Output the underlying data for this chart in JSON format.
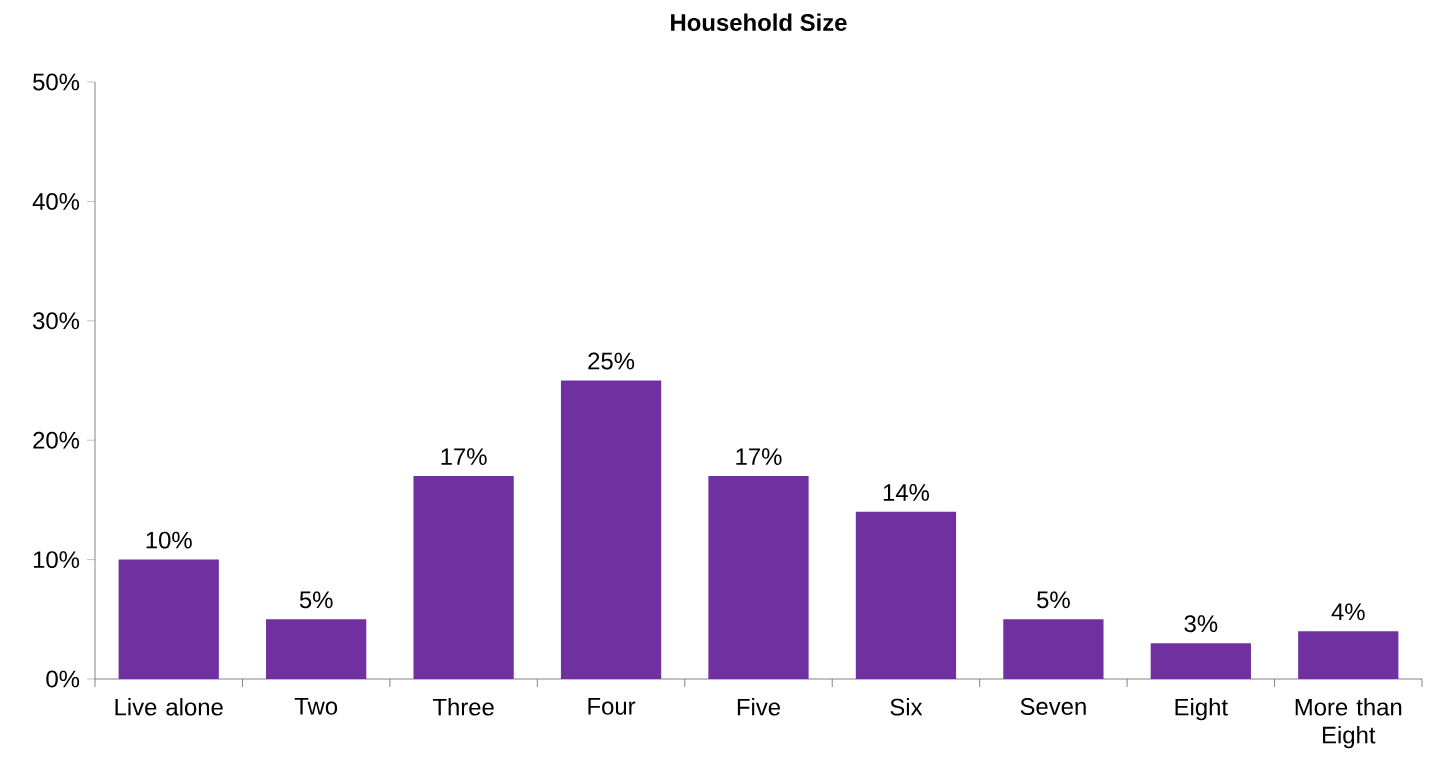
{
  "chart_data": {
    "type": "bar",
    "title": "Household Size",
    "categories": [
      "Live alone",
      "Two",
      "Three",
      "Four",
      "Five",
      "Six",
      "Seven",
      "Eight",
      "More than Eight"
    ],
    "values": [
      10,
      5,
      17,
      25,
      17,
      14,
      5,
      3,
      4
    ],
    "value_labels": [
      "10%",
      "5%",
      "17%",
      "25%",
      "17%",
      "14%",
      "5%",
      "3%",
      "4%"
    ],
    "color": "#7030a0",
    "ylim": [
      0,
      50
    ],
    "yticks": [
      {
        "value": 0,
        "label": "0%"
      },
      {
        "value": 10,
        "label": "10%"
      },
      {
        "value": 20,
        "label": "20%"
      },
      {
        "value": 30,
        "label": "30%"
      },
      {
        "value": 40,
        "label": "40%"
      },
      {
        "value": 50,
        "label": "50%"
      }
    ],
    "grid": false
  }
}
